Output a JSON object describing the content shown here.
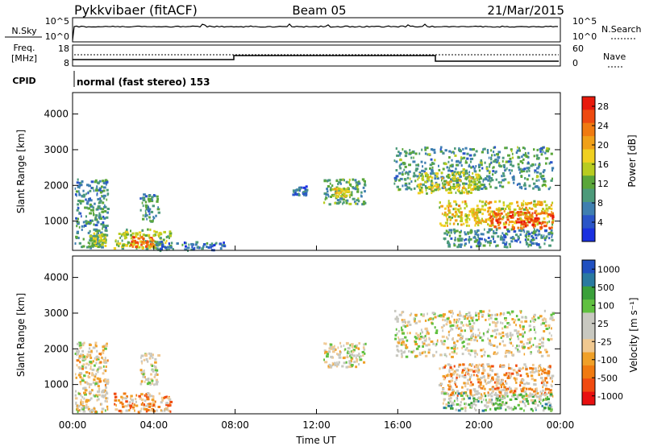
{
  "header": {
    "station": "Pykkvibaer (fitACF)",
    "beam": "Beam 05",
    "date": "21/Mar/2015"
  },
  "status": {
    "nsky_label": "N.Sky",
    "nsky_ticks": [
      "10^5",
      "10^0"
    ],
    "nsearch_ticks": [
      "10^5",
      "10^0"
    ],
    "nsearch_label": "N.Search",
    "freq_label": "Freq.",
    "freq_unit": "[MHz]",
    "freq_ticks": [
      "18",
      "8"
    ],
    "nave_ticks": [
      "60",
      "0"
    ],
    "nave_label": "Nave",
    "cpid_label": "CPID",
    "cpid_text": "normal (fast stereo) 153"
  },
  "colors": {
    "power_scale": [
      "#1a30e0",
      "#2a55c8",
      "#3f7fb0",
      "#4c9a7a",
      "#5aa63a",
      "#b8cc20",
      "#f0d020",
      "#f0a018",
      "#f07a10",
      "#ee4a10",
      "#e81a0c"
    ],
    "velocity_scale": [
      "#e81010",
      "#f04a10",
      "#f07a10",
      "#f0a028",
      "#f0c890",
      "#c8c8c0",
      "#c8c8c0",
      "#60c040",
      "#3aa03a",
      "#2a7aa0",
      "#2050c0"
    ]
  },
  "chart_data": [
    {
      "type": "heatmap",
      "quantity": "Power",
      "ylabel": "Slant Range [km]",
      "xlabel": "Time UT",
      "x_ticks": [
        "00:00",
        "04:00",
        "08:00",
        "12:00",
        "16:00",
        "20:00",
        "00:00"
      ],
      "x_hours": [
        0,
        4,
        8,
        12,
        16,
        20,
        24
      ],
      "y_ticks": [
        1000,
        2000,
        3000,
        4000
      ],
      "ylim": [
        180,
        4600
      ],
      "colorbar_label": "Power [dB]",
      "colorbar_ticks": [
        4,
        8,
        12,
        16,
        20,
        24,
        28
      ],
      "colorbar_range": [
        0,
        30
      ],
      "echo_regions": [
        {
          "t0": 0.1,
          "t1": 1.7,
          "r0": 250,
          "r1": 2200,
          "level": 8
        },
        {
          "t0": 0.8,
          "t1": 1.6,
          "r0": 300,
          "r1": 700,
          "level": 14
        },
        {
          "t0": 2.0,
          "t1": 4.8,
          "r0": 250,
          "r1": 800,
          "level": 14
        },
        {
          "t0": 2.8,
          "t1": 4.0,
          "r0": 300,
          "r1": 600,
          "level": 24
        },
        {
          "t0": 3.3,
          "t1": 4.2,
          "r0": 1000,
          "r1": 1800,
          "level": 8
        },
        {
          "t0": 4.0,
          "t1": 7.5,
          "r0": 200,
          "r1": 450,
          "level": 6
        },
        {
          "t0": 10.8,
          "t1": 11.5,
          "r0": 1750,
          "r1": 2000,
          "level": 6
        },
        {
          "t0": 12.3,
          "t1": 14.4,
          "r0": 1500,
          "r1": 2200,
          "level": 10
        },
        {
          "t0": 12.8,
          "t1": 13.6,
          "r0": 1700,
          "r1": 1950,
          "level": 17
        },
        {
          "t0": 15.8,
          "t1": 23.6,
          "r0": 1900,
          "r1": 3100,
          "level": 9
        },
        {
          "t0": 16.8,
          "t1": 20.0,
          "r0": 1800,
          "r1": 2400,
          "level": 16
        },
        {
          "t0": 18.0,
          "t1": 23.6,
          "r0": 900,
          "r1": 1600,
          "level": 18
        },
        {
          "t0": 20.5,
          "t1": 23.6,
          "r0": 800,
          "r1": 1300,
          "level": 26
        },
        {
          "t0": 18.2,
          "t1": 23.6,
          "r0": 300,
          "r1": 800,
          "level": 8
        }
      ]
    },
    {
      "type": "heatmap",
      "quantity": "Velocity",
      "ylabel": "Slant Range [km]",
      "xlabel": "Time UT",
      "x_ticks": [
        "00:00",
        "04:00",
        "08:00",
        "12:00",
        "16:00",
        "20:00",
        "00:00"
      ],
      "x_hours": [
        0,
        4,
        8,
        12,
        16,
        20,
        24
      ],
      "y_ticks": [
        1000,
        2000,
        3000,
        4000
      ],
      "ylim": [
        180,
        4600
      ],
      "colorbar_label": "Velocity [m s⁻¹]",
      "colorbar_ticks": [
        1000,
        500,
        100,
        25,
        -25,
        -100,
        -500,
        -1000
      ],
      "echo_regions": [
        {
          "t0": 0.1,
          "t1": 1.7,
          "r0": 250,
          "r1": 2200,
          "level": 0.45
        },
        {
          "t0": 2.0,
          "t1": 4.8,
          "r0": 250,
          "r1": 800,
          "level": 0.3
        },
        {
          "t0": 3.3,
          "t1": 4.2,
          "r0": 1000,
          "r1": 1900,
          "level": 0.5
        },
        {
          "t0": 12.3,
          "t1": 14.4,
          "r0": 1500,
          "r1": 2200,
          "level": 0.5
        },
        {
          "t0": 15.8,
          "t1": 23.6,
          "r0": 1800,
          "r1": 3100,
          "level": 0.5
        },
        {
          "t0": 18.0,
          "t1": 23.6,
          "r0": 700,
          "r1": 1600,
          "level": 0.35
        },
        {
          "t0": 18.2,
          "t1": 23.6,
          "r0": 300,
          "r1": 800,
          "level": 0.65
        }
      ]
    }
  ]
}
